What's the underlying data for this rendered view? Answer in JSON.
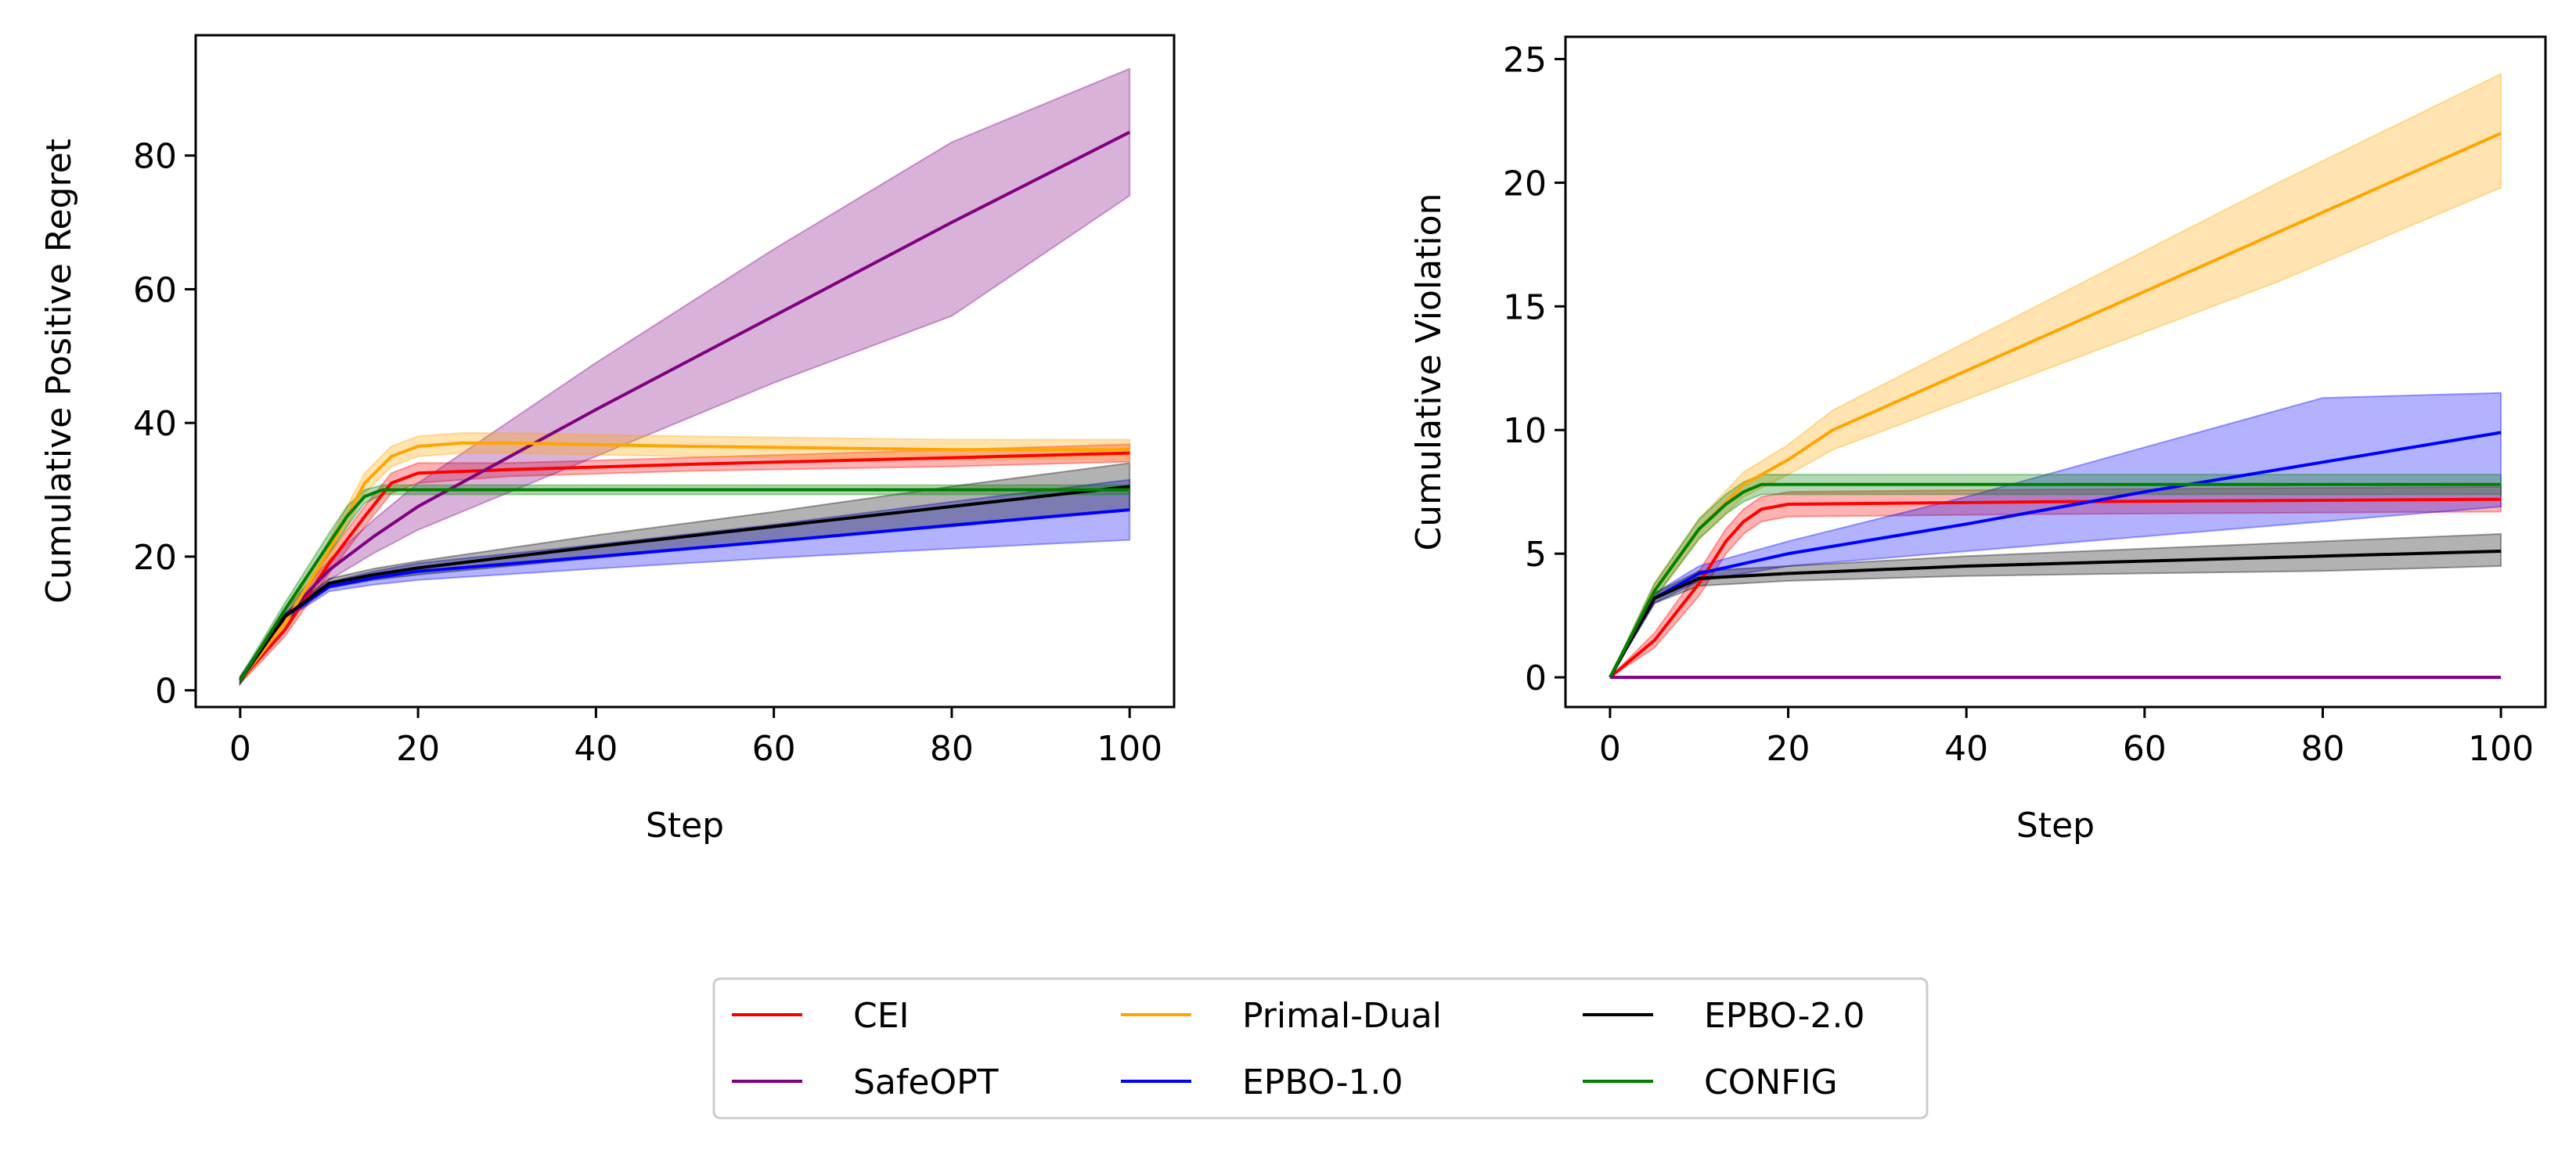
{
  "series_styles": [
    {
      "name": "CEI",
      "color": "#ff0000"
    },
    {
      "name": "SafeOPT",
      "color": "#800080"
    },
    {
      "name": "Primal-Dual",
      "color": "#ffa500"
    },
    {
      "name": "EPBO-1.0",
      "color": "#0000ff"
    },
    {
      "name": "EPBO-2.0",
      "color": "#000000"
    },
    {
      "name": "CONFIG",
      "color": "#008000"
    }
  ],
  "legend": {
    "placement": "bottom-center",
    "columns": 3,
    "entries": [
      "CEI",
      "SafeOPT",
      "Primal-Dual",
      "EPBO-1.0",
      "EPBO-2.0",
      "CONFIG"
    ]
  },
  "chart_data": [
    {
      "type": "line",
      "title": "",
      "xlabel": "Step",
      "ylabel": "Cumulative Positive Regret",
      "xlim": [
        -5,
        105
      ],
      "ylim": [
        -2.5,
        98
      ],
      "xticks": [
        0,
        20,
        40,
        60,
        80,
        100
      ],
      "yticks": [
        0,
        20,
        40,
        60,
        80
      ],
      "grid": false,
      "bands": "shaded confidence band around each mean line",
      "series": [
        {
          "name": "CEI",
          "x": [
            0,
            5,
            10,
            14,
            17,
            20,
            30,
            50,
            80,
            100
          ],
          "y": [
            1.5,
            9,
            19,
            26,
            31,
            32.5,
            33,
            33.8,
            34.8,
            35.5
          ],
          "lower": [
            1,
            8,
            17.5,
            24.5,
            29.5,
            31,
            32,
            32.8,
            33.5,
            34.2
          ],
          "upper": [
            2,
            10,
            20.5,
            27.5,
            32.5,
            34,
            34,
            34.8,
            36,
            36.8
          ]
        },
        {
          "name": "SafeOPT",
          "x": [
            0,
            5,
            10,
            15,
            20,
            40,
            60,
            80,
            100
          ],
          "y": [
            1.5,
            11,
            18,
            23,
            27.5,
            42,
            56,
            70,
            83.5
          ],
          "lower": [
            1,
            10,
            16.5,
            20.5,
            24,
            35,
            46,
            56,
            74
          ],
          "upper": [
            2,
            12,
            19.5,
            25.5,
            31,
            49,
            66,
            82,
            93
          ]
        },
        {
          "name": "Primal-Dual",
          "x": [
            0,
            5,
            10,
            14,
            17,
            20,
            25,
            30,
            50,
            80,
            100
          ],
          "y": [
            1.5,
            10,
            21,
            31,
            35,
            36.5,
            37,
            37,
            36.5,
            36,
            36
          ],
          "lower": [
            1,
            9,
            19.5,
            29.5,
            33.5,
            35,
            35.5,
            35.5,
            35,
            34.5,
            34.5
          ],
          "upper": [
            2,
            11,
            22.5,
            32.5,
            36.5,
            38,
            38.5,
            38.5,
            38,
            37.5,
            37.5
          ]
        },
        {
          "name": "EPBO-1.0",
          "x": [
            0,
            5,
            10,
            15,
            20,
            40,
            60,
            80,
            100
          ],
          "y": [
            1.5,
            11,
            15.5,
            16.8,
            17.8,
            20,
            22.3,
            24.7,
            27
          ],
          "lower": [
            1,
            10.5,
            14.8,
            15.8,
            16.5,
            18.2,
            19.8,
            21.2,
            22.5
          ],
          "upper": [
            2,
            11.5,
            16.2,
            17.8,
            19,
            21.8,
            24.8,
            28.2,
            31.5
          ]
        },
        {
          "name": "EPBO-2.0",
          "x": [
            0,
            5,
            10,
            15,
            20,
            40,
            60,
            80,
            100
          ],
          "y": [
            1.5,
            11,
            16,
            17.3,
            18.3,
            21.5,
            24.5,
            27.5,
            30.5
          ],
          "lower": [
            1,
            10.5,
            15.3,
            16.5,
            17.3,
            19.8,
            22.3,
            24.5,
            27
          ],
          "upper": [
            2,
            11.5,
            16.7,
            18.2,
            19.3,
            23.2,
            26.7,
            30.5,
            34
          ]
        },
        {
          "name": "CONFIG",
          "x": [
            0,
            5,
            10,
            12,
            14,
            16,
            20,
            50,
            100
          ],
          "y": [
            1.5,
            12,
            22,
            26,
            29,
            30,
            30,
            30,
            30
          ],
          "lower": [
            1,
            11,
            20.5,
            24.5,
            28,
            29.3,
            29.3,
            29.3,
            29.3
          ],
          "upper": [
            2,
            13,
            23.5,
            27.5,
            30,
            30.7,
            30.7,
            30.7,
            30.7
          ]
        }
      ]
    },
    {
      "type": "line",
      "title": "",
      "xlabel": "Step",
      "ylabel": "Cumulative Violation",
      "xlim": [
        -5,
        105
      ],
      "ylim": [
        -1.2,
        25.9
      ],
      "xticks": [
        0,
        20,
        40,
        60,
        80,
        100
      ],
      "yticks": [
        0,
        5,
        10,
        15,
        20,
        25
      ],
      "grid": false,
      "bands": "shaded confidence band around each mean line",
      "series": [
        {
          "name": "CEI",
          "x": [
            0,
            5,
            10,
            13,
            15,
            17,
            20,
            50,
            100
          ],
          "y": [
            0,
            1.5,
            3.8,
            5.5,
            6.3,
            6.8,
            7,
            7.1,
            7.2
          ],
          "lower": [
            0,
            1.2,
            3.3,
            5,
            5.8,
            6.3,
            6.5,
            6.6,
            6.7
          ],
          "upper": [
            0,
            1.8,
            4.3,
            6,
            6.8,
            7.3,
            7.5,
            7.6,
            7.7
          ]
        },
        {
          "name": "SafeOPT",
          "x": [
            0,
            100
          ],
          "y": [
            0,
            0
          ],
          "lower": [
            0,
            0
          ],
          "upper": [
            0,
            0
          ]
        },
        {
          "name": "Primal-Dual",
          "x": [
            0,
            5,
            10,
            15,
            20,
            25,
            50,
            75,
            100
          ],
          "y": [
            0,
            3.5,
            6,
            7.8,
            8.8,
            10,
            14,
            18,
            22
          ],
          "lower": [
            0,
            3.2,
            5.6,
            7.3,
            8.2,
            9.2,
            12.6,
            16,
            19.8
          ],
          "upper": [
            0,
            3.8,
            6.4,
            8.3,
            9.4,
            10.8,
            15.4,
            20,
            24.4
          ]
        },
        {
          "name": "EPBO-1.0",
          "x": [
            0,
            5,
            10,
            20,
            40,
            60,
            80,
            100
          ],
          "y": [
            0,
            3.2,
            4.2,
            5,
            6.2,
            7.5,
            8.7,
            9.9
          ],
          "lower": [
            0,
            3,
            3.9,
            4.5,
            5.1,
            5.7,
            6.3,
            6.9
          ],
          "upper": [
            0,
            3.4,
            4.5,
            5.5,
            7.3,
            9.3,
            11.3,
            11.5
          ]
        },
        {
          "name": "EPBO-2.0",
          "x": [
            0,
            5,
            10,
            20,
            40,
            60,
            80,
            100
          ],
          "y": [
            0,
            3.2,
            4,
            4.2,
            4.5,
            4.7,
            4.9,
            5.1
          ],
          "lower": [
            0,
            3,
            3.7,
            3.9,
            4.1,
            4.2,
            4.3,
            4.5
          ],
          "upper": [
            0,
            3.4,
            4.3,
            4.5,
            4.9,
            5.2,
            5.5,
            5.8
          ]
        },
        {
          "name": "CONFIG",
          "x": [
            0,
            5,
            10,
            13,
            15,
            17,
            20,
            50,
            100
          ],
          "y": [
            0,
            3.5,
            6,
            7,
            7.5,
            7.8,
            7.8,
            7.8,
            7.8
          ],
          "lower": [
            0,
            3.2,
            5.6,
            6.6,
            7.1,
            7.4,
            7.4,
            7.4,
            7.4
          ],
          "upper": [
            0,
            3.8,
            6.4,
            7.4,
            7.9,
            8.2,
            8.2,
            8.2,
            8.2
          ]
        }
      ]
    }
  ]
}
